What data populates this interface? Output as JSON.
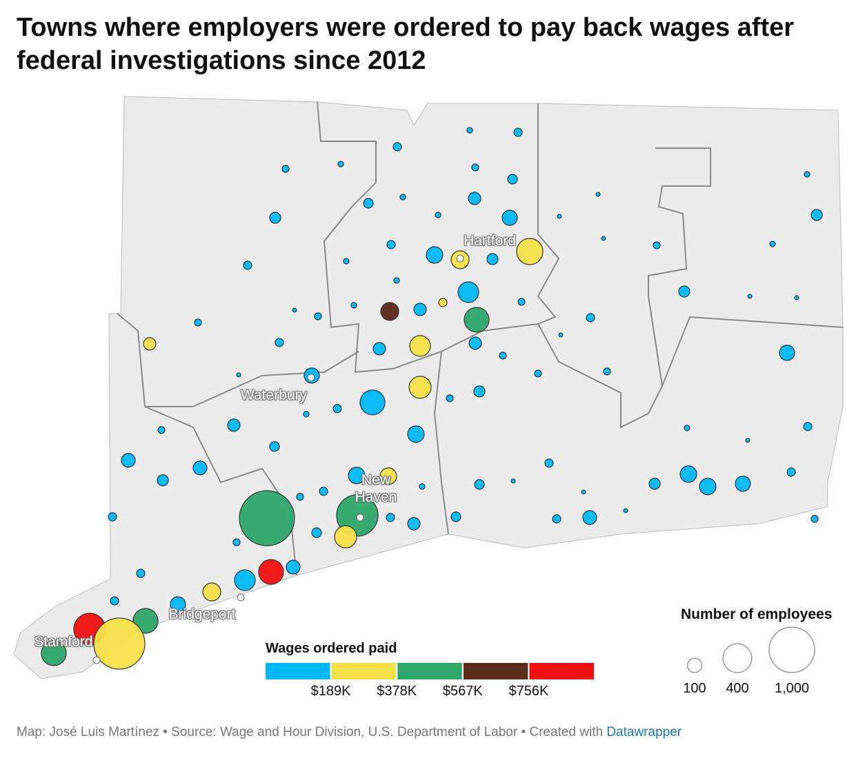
{
  "title": "Towns where employers were ordered to pay back wages after federal investigations since 2012",
  "cities": [
    "Hartford",
    "Waterbury",
    "New Haven",
    "Bridgeport",
    "Stamford"
  ],
  "color_legend": {
    "title": "Wages ordered paid",
    "colors": [
      "#00b8f5",
      "#f5e04a",
      "#2fa66a",
      "#5a2a1b",
      "#f00f0f"
    ],
    "ticks": [
      {
        "value": 189000,
        "label": "$189K"
      },
      {
        "value": 378000,
        "label": "$378K"
      },
      {
        "value": 567000,
        "label": "$567K"
      },
      {
        "value": 756000,
        "label": "$756K"
      }
    ]
  },
  "size_legend": {
    "title": "Number of employees",
    "ticks": [
      100,
      400,
      {
        "value": 1000,
        "label": "1,000"
      }
    ]
  },
  "bubbles": {
    "employees": [
      15,
      33,
      33,
      23,
      15,
      23,
      45,
      15,
      45,
      15,
      74,
      15,
      111,
      59,
      8,
      8,
      59,
      33,
      132,
      155,
      59,
      331,
      8,
      23,
      15,
      15,
      33,
      15,
      207,
      33,
      15,
      155,
      74,
      59,
      8,
      8,
      23,
      8,
      23,
      298,
      23,
      33,
      8,
      74,
      33,
      74,
      207,
      74,
      111,
      23,
      111,
      8,
      23,
      23,
      235,
      298,
      33,
      23,
      59,
      15,
      74,
      23,
      132,
      15,
      33,
      8,
      45,
      92,
      92,
      132,
      132,
      59,
      132,
      132,
      111,
      33,
      59,
      33,
      8,
      45,
      15,
      33,
      23,
      8,
      1469,
      826,
      33,
      33,
      45,
      92,
      8,
      23,
      33,
      74,
      45,
      235,
      23,
      92,
      298,
      207,
      33,
      155,
      111,
      33,
      298,
      486,
      1257,
      298
    ],
    "wages": [
      35000,
      80000,
      80000,
      35000,
      35000,
      35000,
      80000,
      35000,
      80000,
      35000,
      80000,
      35000,
      140000,
      80000,
      35000,
      35000,
      80000,
      80000,
      140000,
      260000,
      80000,
      300000,
      35000,
      35000,
      35000,
      35000,
      80000,
      35000,
      140000,
      220000,
      35000,
      640000,
      80000,
      80000,
      35000,
      35000,
      35000,
      35000,
      35000,
      470000,
      35000,
      80000,
      35000,
      230000,
      80000,
      80000,
      280000,
      80000,
      140000,
      35000,
      140000,
      35000,
      35000,
      35000,
      290000,
      150000,
      80000,
      35000,
      80000,
      35000,
      80000,
      35000,
      140000,
      35000,
      80000,
      35000,
      80000,
      140000,
      140000,
      140000,
      250000,
      80000,
      140000,
      140000,
      140000,
      80000,
      80000,
      80000,
      35000,
      80000,
      35000,
      80000,
      35000,
      35000,
      520000,
      480000,
      80000,
      80000,
      80000,
      140000,
      35000,
      35000,
      80000,
      80000,
      80000,
      300000,
      35000,
      140000,
      880000,
      140000,
      80000,
      260000,
      140000,
      80000,
      450000,
      900000,
      340000,
      420000
    ]
  },
  "footer": {
    "text": "Map: José Luis Martínez • Source: Wage and Hour Division, U.S. Department of Labor • Created with",
    "link": "Datawrapper"
  }
}
